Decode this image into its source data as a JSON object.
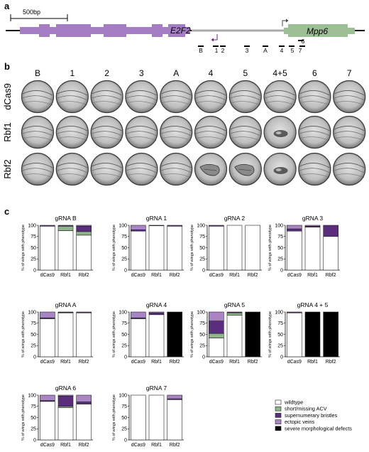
{
  "panels": {
    "a": "a",
    "b": "b",
    "c": "c"
  },
  "panel_a": {
    "scale_bar_label": "500bp",
    "gene_e2f2": "E2F2",
    "gene_mpp6": "Mpp6",
    "grna_labels": [
      "B",
      "1",
      "2",
      "3",
      "A",
      "4",
      "5",
      "6",
      "7"
    ],
    "colors": {
      "e2f2": "#a57dc2",
      "mpp6": "#9dbf96",
      "intron": "#aaaaaa"
    }
  },
  "panel_b": {
    "columns": [
      "B",
      "1",
      "2",
      "3",
      "A",
      "4",
      "5",
      "4+5",
      "6",
      "7"
    ],
    "rows": [
      "dCas9",
      "Rbf1",
      "Rbf2"
    ]
  },
  "legend": [
    {
      "label": "wildtype",
      "color": "#ffffff"
    },
    {
      "label": "short/missing ACV",
      "color": "#8fb58a"
    },
    {
      "label": "supernumerary bristles",
      "color": "#5a2d7e"
    },
    {
      "label": "ectopic veins",
      "color": "#a985c4"
    },
    {
      "label": "severe morphological defects",
      "color": "#000000"
    }
  ],
  "chart_data": [
    {
      "type": "bar",
      "stacked": true,
      "title": "gRNA B",
      "ylabel": "% of wings with phenotype",
      "ylim": [
        0,
        100
      ],
      "yticks": [
        0,
        25,
        50,
        75,
        100
      ],
      "categories": [
        "dCas9",
        "Rbf1",
        "Rbf2"
      ],
      "series": [
        {
          "name": "wildtype",
          "values": [
            98,
            88,
            78
          ]
        },
        {
          "name": "short/missing ACV",
          "values": [
            0,
            10,
            8
          ]
        },
        {
          "name": "supernumerary bristles",
          "values": [
            2,
            2,
            12
          ]
        },
        {
          "name": "ectopic veins",
          "values": [
            0,
            0,
            2
          ]
        },
        {
          "name": "severe morphological defects",
          "values": [
            0,
            0,
            0
          ]
        }
      ]
    },
    {
      "type": "bar",
      "stacked": true,
      "title": "gRNA 1",
      "ylabel": "% of wings with phenotype",
      "ylim": [
        0,
        100
      ],
      "yticks": [
        0,
        25,
        50,
        75,
        100
      ],
      "categories": [
        "dCas9",
        "Rbf1",
        "Rbf2"
      ],
      "series": [
        {
          "name": "wildtype",
          "values": [
            87,
            99,
            98
          ]
        },
        {
          "name": "short/missing ACV",
          "values": [
            0,
            0,
            0
          ]
        },
        {
          "name": "supernumerary bristles",
          "values": [
            3,
            1,
            2
          ]
        },
        {
          "name": "ectopic veins",
          "values": [
            10,
            0,
            0
          ]
        },
        {
          "name": "severe morphological defects",
          "values": [
            0,
            0,
            0
          ]
        }
      ]
    },
    {
      "type": "bar",
      "stacked": true,
      "title": "gRNA 2",
      "ylabel": "% of wings with phenotype",
      "ylim": [
        0,
        100
      ],
      "yticks": [
        0,
        25,
        50,
        75,
        100
      ],
      "categories": [
        "dCas9",
        "Rbf1",
        "Rbf2"
      ],
      "series": [
        {
          "name": "wildtype",
          "values": [
            98,
            100,
            100
          ]
        },
        {
          "name": "short/missing ACV",
          "values": [
            0,
            0,
            0
          ]
        },
        {
          "name": "supernumerary bristles",
          "values": [
            2,
            0,
            0
          ]
        },
        {
          "name": "ectopic veins",
          "values": [
            0,
            0,
            0
          ]
        },
        {
          "name": "severe morphological defects",
          "values": [
            0,
            0,
            0
          ]
        }
      ]
    },
    {
      "type": "bar",
      "stacked": true,
      "title": "gRNA 3",
      "ylabel": "% of wings with phenotype",
      "ylim": [
        0,
        100
      ],
      "yticks": [
        0,
        25,
        50,
        75,
        100
      ],
      "categories": [
        "dCas9",
        "Rbf1",
        "Rbf2"
      ],
      "series": [
        {
          "name": "wildtype",
          "values": [
            87,
            96,
            75
          ]
        },
        {
          "name": "short/missing ACV",
          "values": [
            0,
            0,
            0
          ]
        },
        {
          "name": "supernumerary bristles",
          "values": [
            5,
            2,
            25
          ]
        },
        {
          "name": "ectopic veins",
          "values": [
            8,
            2,
            0
          ]
        },
        {
          "name": "severe morphological defects",
          "values": [
            0,
            0,
            0
          ]
        }
      ]
    },
    {
      "type": "bar",
      "stacked": true,
      "title": "gRNA A",
      "ylabel": "% of wings with phenotype",
      "ylim": [
        0,
        100
      ],
      "yticks": [
        0,
        25,
        50,
        75,
        100
      ],
      "categories": [
        "dCas9",
        "Rbf1",
        "Rbf2"
      ],
      "series": [
        {
          "name": "wildtype",
          "values": [
            85,
            98,
            98
          ]
        },
        {
          "name": "short/missing ACV",
          "values": [
            0,
            0,
            0
          ]
        },
        {
          "name": "supernumerary bristles",
          "values": [
            2,
            1,
            2
          ]
        },
        {
          "name": "ectopic veins",
          "values": [
            13,
            1,
            0
          ]
        },
        {
          "name": "severe morphological defects",
          "values": [
            0,
            0,
            0
          ]
        }
      ]
    },
    {
      "type": "bar",
      "stacked": true,
      "title": "gRNA 4",
      "ylabel": "% of wings with phenotype",
      "ylim": [
        0,
        100
      ],
      "yticks": [
        0,
        25,
        50,
        75,
        100
      ],
      "categories": [
        "dCas9",
        "Rbf1",
        "Rbf2"
      ],
      "series": [
        {
          "name": "wildtype",
          "values": [
            85,
            94,
            0
          ]
        },
        {
          "name": "short/missing ACV",
          "values": [
            0,
            0,
            0
          ]
        },
        {
          "name": "supernumerary bristles",
          "values": [
            2,
            4,
            0
          ]
        },
        {
          "name": "ectopic veins",
          "values": [
            13,
            2,
            0
          ]
        },
        {
          "name": "severe morphological defects",
          "values": [
            0,
            0,
            100
          ]
        }
      ]
    },
    {
      "type": "bar",
      "stacked": true,
      "title": "gRNA 5",
      "ylabel": "% of wings with phenotype",
      "ylim": [
        0,
        100
      ],
      "yticks": [
        0,
        25,
        50,
        75,
        100
      ],
      "categories": [
        "dCas9",
        "Rbf1",
        "Rbf2"
      ],
      "series": [
        {
          "name": "wildtype",
          "values": [
            42,
            93,
            0
          ]
        },
        {
          "name": "short/missing ACV",
          "values": [
            10,
            5,
            0
          ]
        },
        {
          "name": "supernumerary bristles",
          "values": [
            28,
            2,
            0
          ]
        },
        {
          "name": "ectopic veins",
          "values": [
            20,
            0,
            0
          ]
        },
        {
          "name": "severe morphological defects",
          "values": [
            0,
            0,
            100
          ]
        }
      ]
    },
    {
      "type": "bar",
      "stacked": true,
      "title": "gRNA 4 + 5",
      "ylabel": "% of wings with phenotype",
      "ylim": [
        0,
        100
      ],
      "yticks": [
        0,
        25,
        50,
        75,
        100
      ],
      "categories": [
        "dCas9",
        "Rbf1",
        "Rbf2"
      ],
      "series": [
        {
          "name": "wildtype",
          "values": [
            98,
            0,
            0
          ]
        },
        {
          "name": "short/missing ACV",
          "values": [
            0,
            0,
            0
          ]
        },
        {
          "name": "supernumerary bristles",
          "values": [
            2,
            0,
            0
          ]
        },
        {
          "name": "ectopic veins",
          "values": [
            0,
            0,
            0
          ]
        },
        {
          "name": "severe morphological defects",
          "values": [
            0,
            100,
            100
          ]
        }
      ]
    },
    {
      "type": "bar",
      "stacked": true,
      "title": "gRNA 6",
      "ylabel": "% of wings with phenotype",
      "ylim": [
        0,
        100
      ],
      "yticks": [
        0,
        25,
        50,
        75,
        100
      ],
      "categories": [
        "dCas9",
        "Rbf1",
        "Rbf2"
      ],
      "series": [
        {
          "name": "wildtype",
          "values": [
            86,
            72,
            80
          ]
        },
        {
          "name": "short/missing ACV",
          "values": [
            0,
            3,
            0
          ]
        },
        {
          "name": "supernumerary bristles",
          "values": [
            2,
            23,
            5
          ]
        },
        {
          "name": "ectopic veins",
          "values": [
            12,
            2,
            15
          ]
        },
        {
          "name": "severe morphological defects",
          "values": [
            0,
            0,
            0
          ]
        }
      ]
    },
    {
      "type": "bar",
      "stacked": true,
      "title": "gRNA 7",
      "ylabel": "% of wings with phenotype",
      "ylim": [
        0,
        100
      ],
      "yticks": [
        0,
        25,
        50,
        75,
        100
      ],
      "categories": [
        "dCas9",
        "Rbf1",
        "Rbf2"
      ],
      "series": [
        {
          "name": "wildtype",
          "values": [
            100,
            100,
            90
          ]
        },
        {
          "name": "short/missing ACV",
          "values": [
            0,
            0,
            0
          ]
        },
        {
          "name": "supernumerary bristles",
          "values": [
            0,
            0,
            2
          ]
        },
        {
          "name": "ectopic veins",
          "values": [
            0,
            0,
            8
          ]
        },
        {
          "name": "severe morphological defects",
          "values": [
            0,
            0,
            0
          ]
        }
      ]
    }
  ]
}
